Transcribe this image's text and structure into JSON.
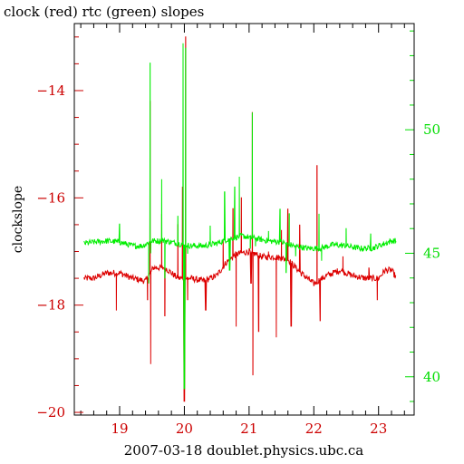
{
  "chart_data": {
    "type": "line",
    "title": "clock (red) rtc (green) slopes",
    "xlabel": "2007-03-18 doublet.physics.ubc.ca",
    "ylabel": "clockslope",
    "xlim": [
      18.3,
      23.55
    ],
    "ylim_left": [
      -20.05,
      -12.75
    ],
    "ylim_right": [
      38.45,
      54.3
    ],
    "x_ticks": [
      19,
      20,
      21,
      22,
      23
    ],
    "y_ticks_left": [
      -20,
      -18,
      -16,
      -14
    ],
    "y_ticks_right": [
      40,
      45,
      50
    ],
    "grid": false,
    "colors": {
      "axes": "#000000",
      "clock": "#dd0000",
      "rtc": "#00ee00",
      "left_ticks": "#cc0000",
      "right_ticks": "#00dd00"
    },
    "series": [
      {
        "name": "clock (red)",
        "axis": "left",
        "color": "#dd0000",
        "x_range": [
          18.45,
          23.28
        ],
        "baseline": [
          [
            18.45,
            -17.5
          ],
          [
            18.6,
            -17.5
          ],
          [
            18.8,
            -17.4
          ],
          [
            19.0,
            -17.4
          ],
          [
            19.2,
            -17.5
          ],
          [
            19.4,
            -17.55
          ],
          [
            19.52,
            -17.3
          ],
          [
            19.7,
            -17.3
          ],
          [
            19.9,
            -17.5
          ],
          [
            20.1,
            -17.5
          ],
          [
            20.3,
            -17.55
          ],
          [
            20.5,
            -17.45
          ],
          [
            20.65,
            -17.2
          ],
          [
            20.8,
            -17.05
          ],
          [
            21.0,
            -17.0
          ],
          [
            21.2,
            -17.1
          ],
          [
            21.4,
            -17.1
          ],
          [
            21.6,
            -17.15
          ],
          [
            21.8,
            -17.4
          ],
          [
            22.0,
            -17.6
          ],
          [
            22.2,
            -17.45
          ],
          [
            22.4,
            -17.35
          ],
          [
            22.6,
            -17.45
          ],
          [
            22.8,
            -17.5
          ],
          [
            23.0,
            -17.5
          ],
          [
            23.1,
            -17.35
          ],
          [
            23.2,
            -17.35
          ],
          [
            23.28,
            -17.5
          ]
        ],
        "spikes": [
          [
            18.95,
            -18.1
          ],
          [
            19.43,
            -17.9
          ],
          [
            19.47,
            -14.2
          ],
          [
            19.48,
            -19.1
          ],
          [
            19.65,
            -16.3
          ],
          [
            19.7,
            -18.2
          ],
          [
            19.9,
            -16.5
          ],
          [
            19.97,
            -15.8
          ],
          [
            20.0,
            -19.8
          ],
          [
            20.02,
            -13.0
          ],
          [
            20.05,
            -17.9
          ],
          [
            20.33,
            -18.1
          ],
          [
            20.6,
            -16.8
          ],
          [
            20.75,
            -16.2
          ],
          [
            20.8,
            -18.4
          ],
          [
            20.88,
            -16.0
          ],
          [
            21.03,
            -17.6
          ],
          [
            21.05,
            -14.4
          ],
          [
            21.06,
            -19.3
          ],
          [
            21.15,
            -18.5
          ],
          [
            21.3,
            -17.0
          ],
          [
            21.42,
            -18.6
          ],
          [
            21.5,
            -16.6
          ],
          [
            21.6,
            -16.2
          ],
          [
            21.65,
            -18.4
          ],
          [
            21.78,
            -16.5
          ],
          [
            22.05,
            -15.4
          ],
          [
            22.1,
            -18.3
          ],
          [
            22.45,
            -17.1
          ],
          [
            22.85,
            -17.3
          ],
          [
            22.98,
            -17.9
          ]
        ]
      },
      {
        "name": "rtc (green)",
        "axis": "right",
        "color": "#00ee00",
        "x_range": [
          18.45,
          23.28
        ],
        "baseline": [
          [
            18.45,
            45.4
          ],
          [
            18.6,
            45.45
          ],
          [
            18.8,
            45.5
          ],
          [
            19.0,
            45.45
          ],
          [
            19.2,
            45.3
          ],
          [
            19.35,
            45.3
          ],
          [
            19.5,
            45.5
          ],
          [
            19.7,
            45.5
          ],
          [
            19.9,
            45.4
          ],
          [
            20.1,
            45.3
          ],
          [
            20.3,
            45.3
          ],
          [
            20.5,
            45.4
          ],
          [
            20.7,
            45.6
          ],
          [
            20.9,
            45.7
          ],
          [
            21.1,
            45.6
          ],
          [
            21.3,
            45.5
          ],
          [
            21.5,
            45.45
          ],
          [
            21.7,
            45.3
          ],
          [
            21.9,
            45.2
          ],
          [
            22.1,
            45.2
          ],
          [
            22.3,
            45.35
          ],
          [
            22.5,
            45.3
          ],
          [
            22.7,
            45.2
          ],
          [
            22.9,
            45.2
          ],
          [
            23.1,
            45.4
          ],
          [
            23.2,
            45.5
          ],
          [
            23.28,
            45.5
          ]
        ],
        "spikes": [
          [
            19.0,
            46.2
          ],
          [
            19.45,
            43.8
          ],
          [
            19.47,
            52.7
          ],
          [
            19.48,
            45.0
          ],
          [
            19.65,
            48.0
          ],
          [
            19.7,
            44.0
          ],
          [
            19.9,
            46.5
          ],
          [
            19.98,
            53.5
          ],
          [
            20.0,
            39.5
          ],
          [
            20.02,
            53.3
          ],
          [
            20.05,
            45.0
          ],
          [
            20.4,
            46.1
          ],
          [
            20.62,
            47.5
          ],
          [
            20.7,
            44.3
          ],
          [
            20.78,
            47.7
          ],
          [
            20.85,
            48.1
          ],
          [
            21.02,
            45.2
          ],
          [
            21.05,
            50.7
          ],
          [
            21.1,
            45.3
          ],
          [
            21.3,
            45.9
          ],
          [
            21.48,
            46.8
          ],
          [
            21.57,
            44.2
          ],
          [
            21.62,
            46.6
          ],
          [
            21.72,
            44.9
          ],
          [
            22.08,
            46.6
          ],
          [
            22.12,
            44.7
          ],
          [
            22.5,
            46.0
          ],
          [
            22.88,
            45.8
          ]
        ]
      }
    ]
  }
}
